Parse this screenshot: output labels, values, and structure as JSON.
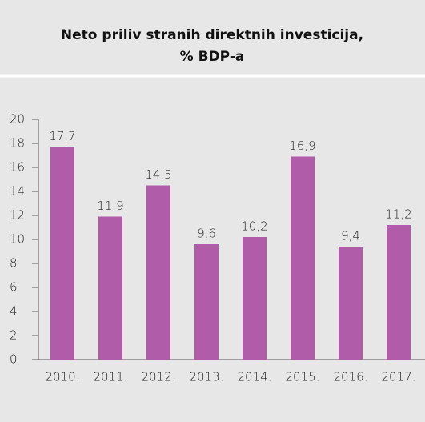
{
  "chart_data": {
    "type": "bar",
    "title": [
      "Neto priliv stranih direktnih investicija,",
      "% BDP-a"
    ],
    "categories": [
      "2010.",
      "2011.",
      "2012.",
      "2013.",
      "2014.",
      "2015.",
      "2016.",
      "2017."
    ],
    "values": [
      17.7,
      11.9,
      14.5,
      9.6,
      10.2,
      16.9,
      9.4,
      11.2
    ],
    "value_labels": [
      "17,7",
      "11,9",
      "14,5",
      "9,6",
      "10,2",
      "16,9",
      "9,4",
      "11,2"
    ],
    "color": "#b05ca8",
    "ylim": [
      0,
      20
    ],
    "yticks": [
      0,
      2,
      4,
      6,
      8,
      10,
      12,
      14,
      16,
      18,
      20
    ],
    "grid": false
  }
}
